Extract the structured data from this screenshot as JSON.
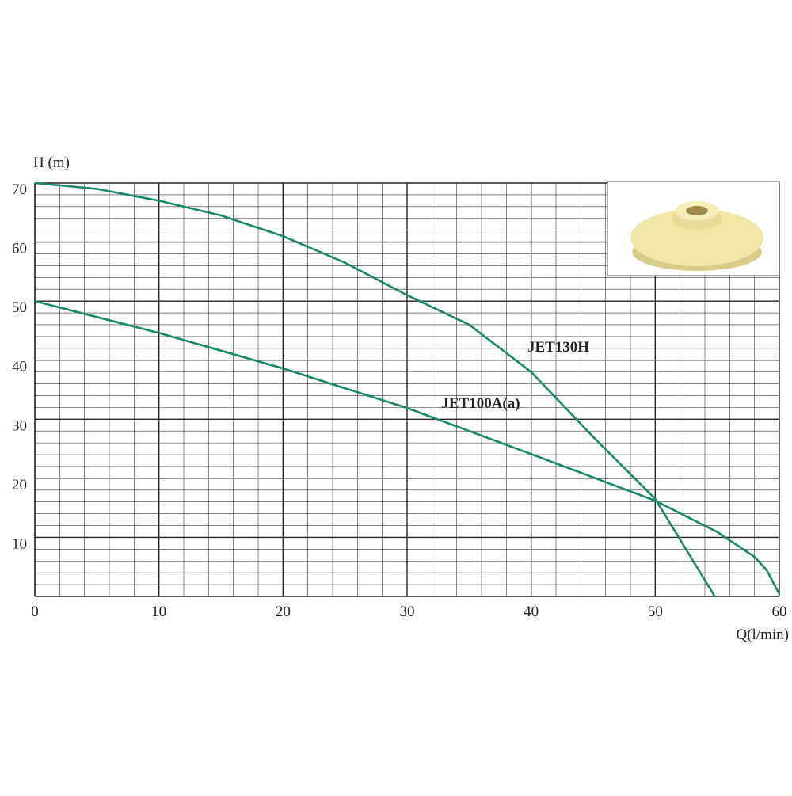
{
  "chart_data": {
    "type": "line",
    "x_label": "Q(l/min)",
    "y_label": "H (m)",
    "xlim": [
      0,
      60
    ],
    "ylim": [
      0,
      70
    ],
    "xticks": [
      0,
      10,
      20,
      30,
      40,
      50,
      60
    ],
    "yticks": [
      10,
      20,
      30,
      40,
      50,
      60,
      70
    ],
    "grid": true,
    "series": [
      {
        "name": "JET130H",
        "color": "#17876b",
        "x": [
          0,
          5,
          10,
          15,
          20,
          25,
          30,
          35,
          40,
          45,
          50,
          54.8
        ],
        "values": [
          70,
          69,
          67,
          64.5,
          61,
          56.5,
          51,
          46,
          38,
          27,
          16.5,
          0
        ]
      },
      {
        "name": "JET100A(a)",
        "color": "#17876b",
        "x": [
          0,
          10,
          20,
          30,
          40,
          50,
          55,
          58,
          59,
          60
        ],
        "values": [
          50,
          44.6,
          38.6,
          31.9,
          24.1,
          16.2,
          10.9,
          6.7,
          4.4,
          0.4
        ]
      }
    ]
  }
}
